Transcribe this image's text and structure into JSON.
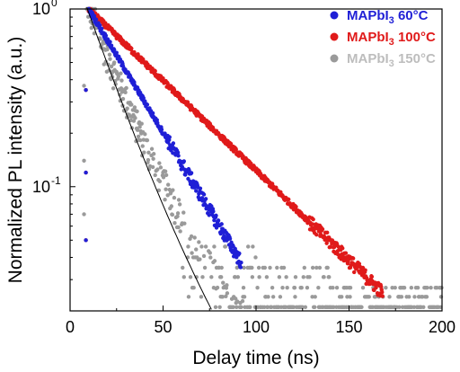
{
  "chart_data": {
    "type": "scatter",
    "title": "",
    "xlabel": "Delay time (ns)",
    "ylabel": "Normalized PL intensity (a.u.)",
    "xlim": [
      0,
      200
    ],
    "ylim": [
      0.02,
      1.0
    ],
    "yscale": "log",
    "x_ticks": [
      0,
      50,
      100,
      150,
      200
    ],
    "x_tick_labels": [
      "0",
      "50",
      "100",
      "150",
      "200"
    ],
    "y_ticks": [
      0.1,
      1.0
    ],
    "y_tick_labels": [
      {
        "base": "10",
        "exp": "-1"
      },
      {
        "base": "10",
        "exp": "0"
      }
    ],
    "grid": false,
    "legend_position": "top-right",
    "series": [
      {
        "name": "MAPbI3 60°C",
        "name_main": "MAPbI",
        "name_sub": "3",
        "name_tail": " 60°C",
        "color": "#1f1fd6",
        "peak_x": 10,
        "decay_tau_ns": 25,
        "end_x": 92,
        "fit": false
      },
      {
        "name": "MAPbI3 100°C",
        "name_main": "MAPbI",
        "name_sub": "3",
        "name_tail": " 100°C",
        "color": "#e01a1a",
        "peak_x": 10,
        "decay_tau_ns": 43,
        "end_x": 168,
        "fit": false
      },
      {
        "name": "MAPbI3 150°C",
        "name_main": "MAPbI",
        "name_sub": "3",
        "name_tail": " 150°C",
        "color": "#9a9a9a",
        "legend_text_color": "#bdbdbd",
        "peak_x": 9,
        "decay_tau_ns": 22,
        "end_x": 200,
        "noise_floor": 0.021,
        "fit": true,
        "fit_color": "#000000"
      }
    ]
  }
}
